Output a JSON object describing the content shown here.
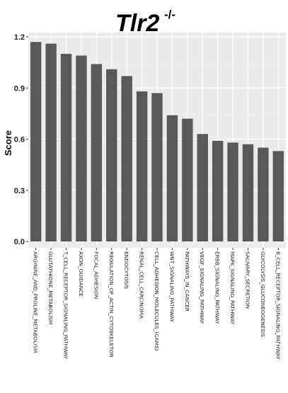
{
  "title": {
    "main": "Tlr2",
    "superscript": "-/-"
  },
  "chart_data": {
    "type": "bar",
    "title": "Tlr2 -/-",
    "xlabel": "",
    "ylabel": "Score",
    "ylim": [
      0,
      1.23
    ],
    "yticks": [
      "0.0",
      "0.3",
      "0.6",
      "0.9",
      "1.2"
    ],
    "ytick_values": [
      0,
      0.3,
      0.6,
      0.9,
      1.2
    ],
    "grid": true,
    "bar_color": "#595959",
    "panel_color": "#ebebeb",
    "categories": [
      "ARGININE_AND_PROLINE_METABOLISM",
      "GLUTATHIONE_METABOLISM",
      "T_CELL_RECEPTOR_SIGNALING_PATHWAY",
      "AXON_GUIDANCE",
      "FOCAL_ADHESION",
      "REGULATION_OF_ACTIN_CYTOSKELETON",
      "ENDOCYTOSIS",
      "RENAL_CELL_CARCINOMA",
      "CELL_ADHESION_MOLECULES_(CAMS)",
      "WNT_SIGNALING_PATHWAY",
      "PATHWAYS_IN_CANCER",
      "VEGF_SIGNALING_PATHWAY",
      "ERBB_SIGNALING_PATHWAY",
      "MAPK_SIGNALING_PATHWAY",
      "SALIVARY_SECRETION",
      "GLYCOLYSIS_GLUCONEOGENESIS",
      "B_CELL_RECEPTOR_SIGNALING_PATHWAY"
    ],
    "values": [
      1.17,
      1.16,
      1.1,
      1.09,
      1.04,
      1.01,
      0.97,
      0.88,
      0.87,
      0.74,
      0.72,
      0.63,
      0.59,
      0.58,
      0.57,
      0.55,
      0.53
    ]
  }
}
